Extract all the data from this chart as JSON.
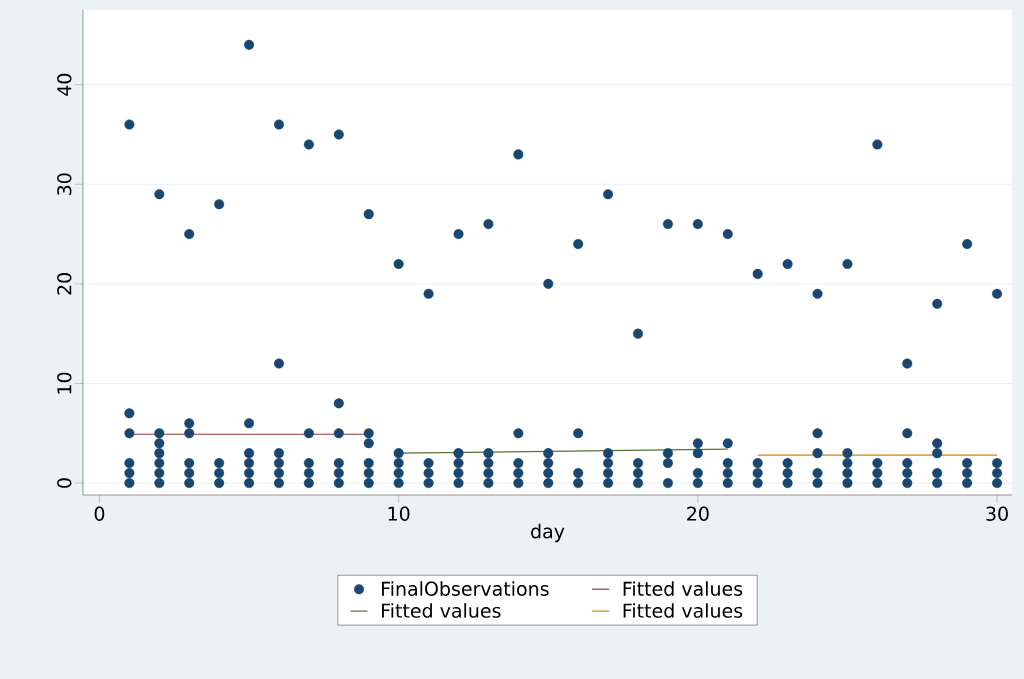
{
  "chart_data": {
    "type": "scatter",
    "xlabel": "day",
    "xlim": [
      -0.55,
      30.5
    ],
    "ylim": [
      -1.2,
      47.5
    ],
    "xticks": [
      0,
      10,
      20,
      30
    ],
    "yticks": [
      0,
      10,
      20,
      30,
      40
    ],
    "grid": "y",
    "legend": "bottom",
    "marker": "circle",
    "series": [
      {
        "name": "FinalObservations",
        "color": "#1a476f",
        "x": [
          1,
          1,
          1,
          1,
          1,
          1,
          2,
          2,
          2,
          2,
          2,
          2,
          2,
          3,
          3,
          3,
          3,
          3,
          3,
          4,
          4,
          4,
          4,
          5,
          5,
          5,
          5,
          5,
          5,
          6,
          6,
          6,
          6,
          6,
          6,
          7,
          7,
          7,
          7,
          7,
          8,
          8,
          8,
          8,
          8,
          8,
          9,
          9,
          9,
          9,
          9,
          9,
          10,
          10,
          10,
          10,
          10,
          11,
          11,
          11,
          11,
          12,
          12,
          12,
          12,
          12,
          13,
          13,
          13,
          13,
          13,
          14,
          14,
          14,
          14,
          14,
          15,
          15,
          15,
          15,
          15,
          16,
          16,
          16,
          16,
          17,
          17,
          17,
          17,
          17,
          18,
          18,
          18,
          18,
          19,
          19,
          19,
          19,
          20,
          20,
          20,
          20,
          20,
          21,
          21,
          21,
          21,
          21,
          22,
          22,
          22,
          22,
          23,
          23,
          23,
          23,
          24,
          24,
          24,
          24,
          24,
          25,
          25,
          25,
          25,
          25,
          26,
          26,
          26,
          26,
          27,
          27,
          27,
          27,
          27,
          28,
          28,
          28,
          28,
          28,
          29,
          29,
          29,
          29,
          30,
          30,
          30,
          30
        ],
        "values": [
          36,
          7,
          5,
          2,
          1,
          0,
          29,
          5,
          4,
          3,
          2,
          1,
          0,
          25,
          6,
          5,
          2,
          1,
          0,
          28,
          2,
          1,
          0,
          44,
          6,
          3,
          2,
          1,
          0,
          36,
          12,
          3,
          2,
          1,
          0,
          34,
          5,
          2,
          1,
          0,
          35,
          8,
          5,
          2,
          1,
          0,
          27,
          5,
          4,
          2,
          1,
          0,
          22,
          3,
          2,
          1,
          0,
          19,
          2,
          1,
          0,
          25,
          3,
          2,
          1,
          0,
          26,
          3,
          2,
          1,
          0,
          33,
          5,
          2,
          1,
          0,
          20,
          3,
          2,
          1,
          0,
          24,
          5,
          1,
          0,
          29,
          3,
          2,
          1,
          0,
          15,
          2,
          1,
          0,
          26,
          3,
          2,
          0,
          26,
          4,
          3,
          1,
          0,
          25,
          4,
          2,
          1,
          0,
          21,
          2,
          1,
          0,
          22,
          2,
          1,
          0,
          19,
          5,
          3,
          1,
          0,
          22,
          3,
          2,
          1,
          0,
          34,
          2,
          1,
          0,
          12,
          5,
          2,
          1,
          0,
          18,
          4,
          3,
          1,
          0,
          24,
          2,
          1,
          0,
          19,
          2,
          1,
          0
        ]
      },
      {
        "name": "Fitted values",
        "type": "line",
        "color": "#90353b",
        "marker": "none",
        "x": [
          1,
          9
        ],
        "values": [
          4.9,
          4.9
        ]
      },
      {
        "name": "Fitted values",
        "type": "line",
        "color": "#55752f",
        "marker": "none",
        "x": [
          10,
          21
        ],
        "values": [
          3.0,
          3.4
        ]
      },
      {
        "name": "Fitted values",
        "type": "line",
        "color": "#e37e00",
        "marker": "none",
        "x": [
          22,
          30
        ],
        "values": [
          2.8,
          2.8
        ]
      }
    ]
  }
}
